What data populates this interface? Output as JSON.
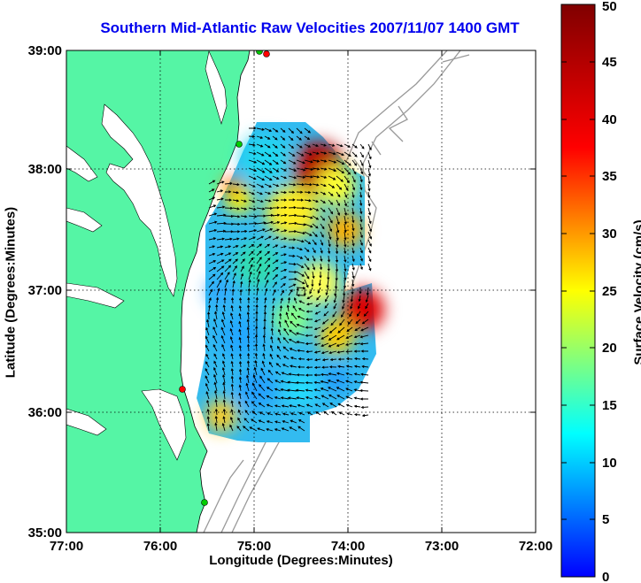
{
  "title": "Southern Mid-Atlantic Raw Velocities 2007/11/07 1400 GMT",
  "xlabel": "Longitude (Degrees:Minutes)",
  "ylabel": "Latitude (Degrees:Minutes)",
  "colorbar": {
    "label": "Surface Velocity (cm/s)",
    "ticks": [
      "50",
      "45",
      "40",
      "35",
      "30",
      "25",
      "20",
      "15",
      "10",
      "5",
      "0"
    ],
    "range": [
      0,
      50
    ],
    "colors": [
      "#0000ff",
      "#00ffff",
      "#ffff00",
      "#ff0000",
      "#800000"
    ]
  },
  "map": {
    "x_ticks": [
      "77:00",
      "76:00",
      "75:00",
      "74:00",
      "73:00",
      "72:00"
    ],
    "y_ticks": [
      "39:00",
      "38:00",
      "37:00",
      "36:00",
      "35:00"
    ],
    "lon_range": [
      -77,
      -72
    ],
    "lat_range": [
      35,
      39
    ],
    "grid": true,
    "land_color": "#55f5a5",
    "ocean_color": "#ffffff",
    "arrow_color": "#000000",
    "station_colors": [
      "#ff0000",
      "#00cc00"
    ]
  }
}
